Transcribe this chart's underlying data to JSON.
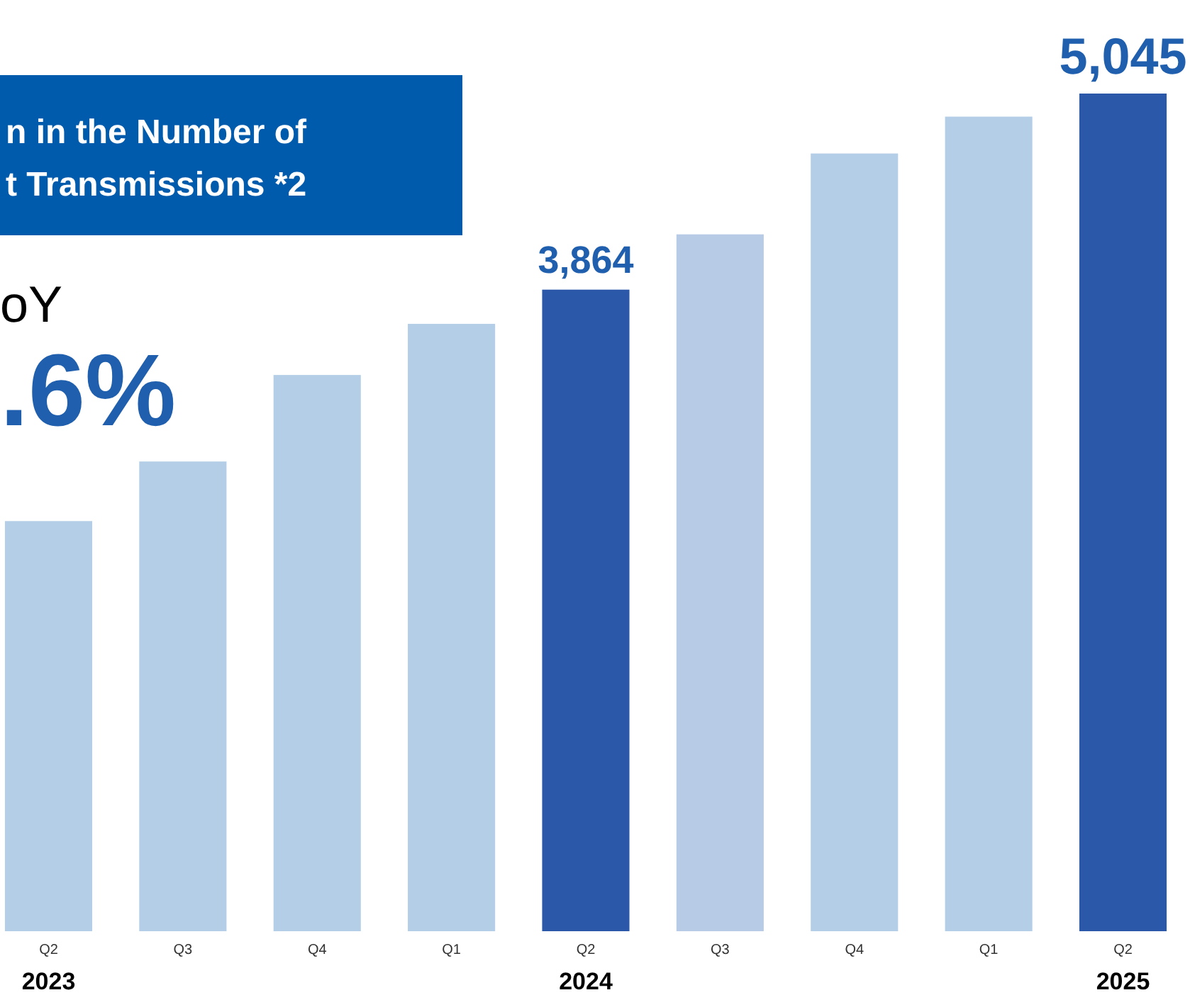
{
  "chart_data": {
    "type": "bar",
    "title": "n in the Number of\nt Transmissions *2",
    "categories": [
      "Q2",
      "Q3",
      "Q4",
      "Q1",
      "Q2",
      "Q3",
      "Q4",
      "Q1",
      "Q2"
    ],
    "values": [
      2470,
      2829,
      3350,
      3658,
      3864,
      4197,
      4684,
      4906,
      5045
    ],
    "colors": [
      "#b3cee6",
      "#b3cee6",
      "#b3cee6",
      "#b3cee6",
      "#2b58a8",
      "#b8cbe6",
      "#b3cee6",
      "#b3cee6",
      "#2b58a8"
    ],
    "value_labels": [
      null,
      null,
      null,
      null,
      "3,864",
      null,
      null,
      null,
      "5,045"
    ],
    "annotations": [
      "oY",
      ".6%",
      "2023",
      "2024",
      "2025"
    ],
    "legend": false
  }
}
